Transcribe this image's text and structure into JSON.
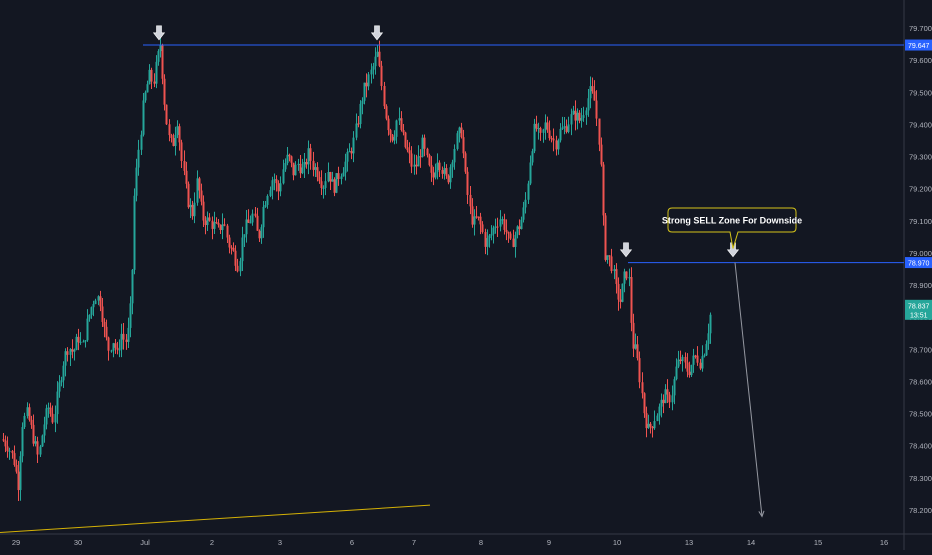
{
  "chart_data": {
    "type": "candlestick",
    "y_axis": {
      "ticks": [
        79.7,
        79.6,
        79.5,
        79.4,
        79.3,
        79.2,
        79.1,
        79.0,
        78.9,
        78.8,
        78.7,
        78.6,
        78.5,
        78.4,
        78.3,
        78.2
      ],
      "tick_labels": [
        "79.700",
        "79.600",
        "79.500",
        "79.400",
        "79.300",
        "79.200",
        "79.100",
        "79.000",
        "78.900",
        "78.800",
        "78.700",
        "78.600",
        "78.500",
        "78.400",
        "78.300",
        "78.200"
      ],
      "range": [
        78.13,
        79.75
      ]
    },
    "x_axis": {
      "labels": [
        "29",
        "30",
        "Jul",
        "2",
        "3",
        "6",
        "7",
        "8",
        "9",
        "10",
        "13",
        "14",
        "15",
        "16"
      ],
      "label_positions": [
        16,
        78,
        145,
        212,
        280,
        352,
        414,
        481,
        549,
        617,
        689,
        751,
        818,
        884
      ]
    },
    "price_badges": [
      {
        "label": "79.647",
        "value": 79.647,
        "color": "#2962ff"
      },
      {
        "label": "78.970",
        "value": 78.97,
        "color": "#2962ff"
      },
      {
        "label": "78.837",
        "value": 78.837,
        "color": "#26a69a",
        "sub": "13:51"
      }
    ],
    "horizontal_lines": [
      {
        "value": 79.647,
        "x_start": 143,
        "color": "#2962ff"
      },
      {
        "value": 78.97,
        "x_start": 628,
        "color": "#2962ff"
      }
    ],
    "arrow_markers": [
      {
        "x": 159,
        "value": 79.66
      },
      {
        "x": 377,
        "value": 79.66
      },
      {
        "x": 626,
        "value": 78.985
      },
      {
        "x": 733,
        "value": 78.985
      }
    ],
    "callout": {
      "text": "Strong SELL Zone For Downside",
      "target_x": 733,
      "target_value": 78.97
    },
    "projection_line": {
      "from": {
        "x": 735,
        "value": 78.97
      },
      "to": {
        "x": 762,
        "value": 78.18
      }
    },
    "trend_line": {
      "from": {
        "x": 0,
        "value": 78.13
      },
      "to": {
        "x": 430,
        "value": 78.215
      }
    },
    "path_points": [
      [
        2,
        78.42
      ],
      [
        8,
        78.4
      ],
      [
        14,
        78.35
      ],
      [
        18,
        78.28
      ],
      [
        22,
        78.47
      ],
      [
        27,
        78.5
      ],
      [
        32,
        78.44
      ],
      [
        38,
        78.36
      ],
      [
        43,
        78.46
      ],
      [
        48,
        78.52
      ],
      [
        53,
        78.48
      ],
      [
        58,
        78.57
      ],
      [
        63,
        78.66
      ],
      [
        68,
        78.71
      ],
      [
        73,
        78.69
      ],
      [
        78,
        78.74
      ],
      [
        82,
        78.7
      ],
      [
        86,
        78.77
      ],
      [
        90,
        78.82
      ],
      [
        95,
        78.87
      ],
      [
        100,
        78.85
      ],
      [
        104,
        78.76
      ],
      [
        108,
        78.7
      ],
      [
        113,
        78.73
      ],
      [
        117,
        78.68
      ],
      [
        121,
        78.75
      ],
      [
        125,
        78.72
      ],
      [
        129,
        78.77
      ],
      [
        132,
        78.95
      ],
      [
        134,
        79.17
      ],
      [
        137,
        79.28
      ],
      [
        140,
        79.37
      ],
      [
        143,
        79.46
      ],
      [
        146,
        79.51
      ],
      [
        149,
        79.55
      ],
      [
        153,
        79.53
      ],
      [
        157,
        79.6
      ],
      [
        160,
        79.65
      ],
      [
        164,
        79.48
      ],
      [
        168,
        79.36
      ],
      [
        172,
        79.33
      ],
      [
        177,
        79.42
      ],
      [
        182,
        79.27
      ],
      [
        187,
        79.17
      ],
      [
        192,
        79.12
      ],
      [
        197,
        79.23
      ],
      [
        202,
        79.11
      ],
      [
        207,
        79.1
      ],
      [
        212,
        79.09
      ],
      [
        218,
        79.07
      ],
      [
        223,
        79.1
      ],
      [
        228,
        79.03
      ],
      [
        233,
        79.0
      ],
      [
        238,
        78.96
      ],
      [
        243,
        79.07
      ],
      [
        248,
        79.09
      ],
      [
        253,
        79.12
      ],
      [
        258,
        79.04
      ],
      [
        263,
        79.14
      ],
      [
        268,
        79.2
      ],
      [
        273,
        79.24
      ],
      [
        278,
        79.19
      ],
      [
        283,
        79.27
      ],
      [
        288,
        79.3
      ],
      [
        293,
        79.25
      ],
      [
        298,
        79.28
      ],
      [
        303,
        79.25
      ],
      [
        308,
        79.31
      ],
      [
        313,
        79.27
      ],
      [
        318,
        79.25
      ],
      [
        323,
        79.21
      ],
      [
        328,
        79.26
      ],
      [
        333,
        79.2
      ],
      [
        338,
        79.24
      ],
      [
        343,
        79.27
      ],
      [
        348,
        79.3
      ],
      [
        353,
        79.34
      ],
      [
        358,
        79.42
      ],
      [
        363,
        79.5
      ],
      [
        368,
        79.54
      ],
      [
        373,
        79.58
      ],
      [
        377,
        79.62
      ],
      [
        381,
        79.53
      ],
      [
        385,
        79.44
      ],
      [
        389,
        79.38
      ],
      [
        393,
        79.36
      ],
      [
        397,
        79.42
      ],
      [
        401,
        79.38
      ],
      [
        405,
        79.33
      ],
      [
        409,
        79.3
      ],
      [
        413,
        79.26
      ],
      [
        417,
        79.28
      ],
      [
        422,
        79.34
      ],
      [
        427,
        79.28
      ],
      [
        432,
        79.22
      ],
      [
        437,
        79.3
      ],
      [
        442,
        79.26
      ],
      [
        447,
        79.22
      ],
      [
        452,
        79.3
      ],
      [
        457,
        79.36
      ],
      [
        461,
        79.38
      ],
      [
        465,
        79.24
      ],
      [
        469,
        79.14
      ],
      [
        473,
        79.09
      ],
      [
        477,
        79.11
      ],
      [
        481,
        79.08
      ],
      [
        485,
        79.03
      ],
      [
        490,
        79.05
      ],
      [
        495,
        79.09
      ],
      [
        500,
        79.11
      ],
      [
        505,
        79.08
      ],
      [
        510,
        79.02
      ],
      [
        515,
        79.06
      ],
      [
        520,
        79.09
      ],
      [
        525,
        79.15
      ],
      [
        530,
        79.3
      ],
      [
        535,
        79.4
      ],
      [
        540,
        79.35
      ],
      [
        545,
        79.4
      ],
      [
        550,
        79.37
      ],
      [
        555,
        79.34
      ],
      [
        560,
        79.38
      ],
      [
        565,
        79.39
      ],
      [
        570,
        79.42
      ],
      [
        575,
        79.43
      ],
      [
        580,
        79.41
      ],
      [
        585,
        79.46
      ],
      [
        590,
        79.5
      ],
      [
        594,
        79.48
      ],
      [
        598,
        79.38
      ],
      [
        601,
        79.25
      ],
      [
        604,
        79.0
      ],
      [
        608,
        78.99
      ],
      [
        612,
        78.96
      ],
      [
        616,
        78.88
      ],
      [
        620,
        78.85
      ],
      [
        624,
        78.92
      ],
      [
        628,
        78.95
      ],
      [
        632,
        78.72
      ],
      [
        636,
        78.69
      ],
      [
        640,
        78.6
      ],
      [
        644,
        78.5
      ],
      [
        648,
        78.45
      ],
      [
        652,
        78.47
      ],
      [
        656,
        78.5
      ],
      [
        660,
        78.52
      ],
      [
        664,
        78.56
      ],
      [
        668,
        78.54
      ],
      [
        672,
        78.57
      ],
      [
        676,
        78.64
      ],
      [
        680,
        78.67
      ],
      [
        684,
        78.65
      ],
      [
        688,
        78.63
      ],
      [
        692,
        78.66
      ],
      [
        696,
        78.68
      ],
      [
        700,
        78.66
      ],
      [
        704,
        78.7
      ],
      [
        708,
        78.76
      ],
      [
        712,
        78.84
      ]
    ]
  }
}
